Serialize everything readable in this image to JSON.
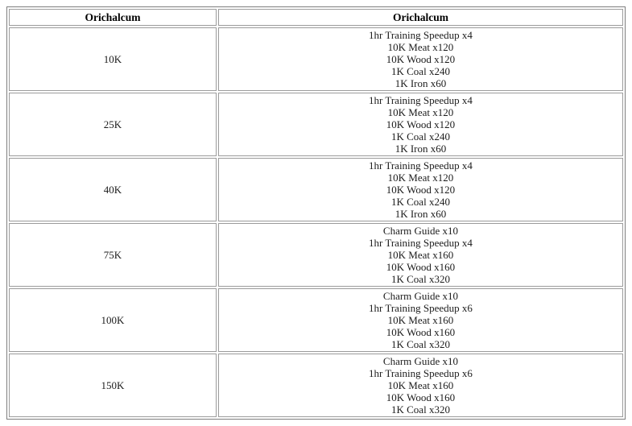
{
  "table": {
    "headers": [
      "Orichalcum",
      "Orichalcum"
    ],
    "rows": [
      {
        "amount": "10K",
        "rewards": [
          "1hr Training Speedup x4",
          "10K Meat x120",
          "10K Wood x120",
          "1K Coal x240",
          "1K Iron x60"
        ]
      },
      {
        "amount": "25K",
        "rewards": [
          "1hr Training Speedup x4",
          "10K Meat x120",
          "10K Wood x120",
          "1K Coal x240",
          "1K Iron x60"
        ]
      },
      {
        "amount": "40K",
        "rewards": [
          "1hr Training Speedup x4",
          "10K Meat x120",
          "10K Wood x120",
          "1K Coal x240",
          "1K Iron x60"
        ]
      },
      {
        "amount": "75K",
        "rewards": [
          "Charm Guide x10",
          "1hr Training Speedup x4",
          "10K Meat x160",
          "10K Wood x160",
          "1K Coal x320"
        ]
      },
      {
        "amount": "100K",
        "rewards": [
          "Charm Guide x10",
          "1hr Training Speedup x6",
          "10K Meat x160",
          "10K Wood x160",
          "1K Coal x320"
        ]
      },
      {
        "amount": "150K",
        "rewards": [
          "Charm Guide x10",
          "1hr Training Speedup x6",
          "10K Meat x160",
          "10K Wood x160",
          "1K Coal x320"
        ]
      }
    ]
  },
  "colors": {
    "table_border": "#7e7e7e",
    "cell_border": "#9b9b9b",
    "text": "#1c1c1c",
    "background": "#ffffff"
  }
}
